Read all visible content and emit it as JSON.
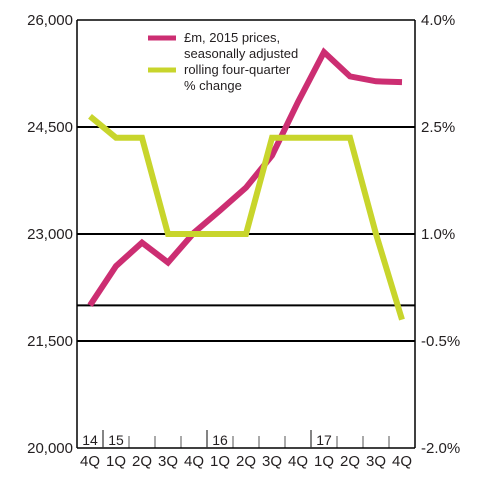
{
  "chart_data": {
    "type": "line",
    "x": [
      "4Q",
      "1Q",
      "2Q",
      "3Q",
      "4Q",
      "1Q",
      "2Q",
      "3Q",
      "4Q",
      "1Q",
      "2Q",
      "3Q",
      "4Q"
    ],
    "year_labels": [
      {
        "label": "14",
        "index": 0
      },
      {
        "label": "15",
        "index": 1
      },
      {
        "label": "16",
        "index": 5
      },
      {
        "label": "17",
        "index": 9
      }
    ],
    "series": [
      {
        "name": "£m, 2015 prices, seasonally adjusted",
        "axis": "left",
        "color": "#cc2e72",
        "values": [
          22000,
          22550,
          22880,
          22600,
          23020,
          23330,
          23650,
          24100,
          24850,
          25550,
          25210,
          25140,
          25130
        ]
      },
      {
        "name": "rolling four-quarter % change",
        "axis": "right",
        "color": "#c8d52c",
        "values": [
          2.65,
          2.35,
          2.35,
          1.0,
          1.0,
          1.0,
          1.0,
          2.35,
          2.35,
          2.35,
          2.35,
          1.0,
          -0.2
        ]
      }
    ],
    "yleft": {
      "lim": [
        20000,
        26000
      ],
      "ticks": [
        20000,
        21500,
        23000,
        24500,
        26000
      ],
      "tick_labels": [
        "20,000",
        "21,500",
        "23,000",
        "24,500",
        "26,000"
      ]
    },
    "yright": {
      "lim": [
        -2.0,
        4.0
      ],
      "ticks": [
        -2.0,
        -0.5,
        1.0,
        2.5,
        4.0
      ],
      "tick_labels": [
        "-2.0%",
        "-0.5%",
        "1.0%",
        "2.5%",
        "4.0%"
      ]
    },
    "zero_line_right": 0,
    "title": "",
    "xlabel": "",
    "ylabel": "",
    "legend_position": "top-center",
    "grid": "horizontal"
  }
}
